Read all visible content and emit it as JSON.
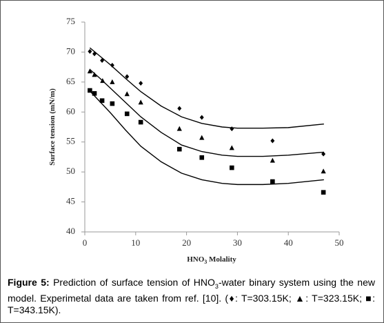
{
  "chart_data": {
    "type": "scatter",
    "xlabel": {
      "main": "HNO",
      "sub": "3",
      "rest": " Molality"
    },
    "ylabel": "Surface tension (mN/m)",
    "xlim": [
      0,
      50
    ],
    "xticks": [
      0,
      10,
      20,
      30,
      40,
      50
    ],
    "ylim": [
      40,
      75
    ],
    "yticks": [
      40,
      45,
      50,
      55,
      60,
      65,
      70,
      75
    ],
    "grid": false,
    "series": [
      {
        "marker": "diamond",
        "color": "#000000",
        "x": [
          1.0,
          1.9,
          3.4,
          5.4,
          8.3,
          11.0,
          18.6,
          23.0,
          28.9,
          36.9,
          46.9
        ],
        "values": [
          70.1,
          69.7,
          68.6,
          67.8,
          65.9,
          64.8,
          60.6,
          59.1,
          57.2,
          55.2,
          53.0
        ]
      },
      {
        "marker": "triangle",
        "color": "#000000",
        "x": [
          1.0,
          1.9,
          3.5,
          5.4,
          8.3,
          11.0,
          18.6,
          23.0,
          28.9,
          36.9,
          46.9
        ],
        "values": [
          66.8,
          66.2,
          65.2,
          65.0,
          63.0,
          61.6,
          57.2,
          55.7,
          54.0,
          51.9,
          50.1
        ]
      },
      {
        "marker": "square",
        "color": "#000000",
        "x": [
          1.0,
          1.9,
          3.4,
          5.4,
          8.3,
          11.0,
          18.6,
          23.0,
          28.9,
          36.9,
          46.9
        ],
        "values": [
          63.6,
          63.1,
          61.9,
          61.4,
          59.7,
          58.3,
          53.8,
          52.4,
          50.7,
          48.4,
          46.6
        ]
      }
    ],
    "model": {
      "color": "#000000",
      "x": [
        1,
        3,
        5,
        8,
        11,
        15,
        19,
        23,
        27,
        30,
        35,
        40,
        47
      ],
      "lines": [
        {
          "values": [
            70.7,
            69.3,
            67.9,
            65.6,
            63.4,
            61.0,
            59.2,
            58.1,
            57.5,
            57.3,
            57.3,
            57.4,
            58.0
          ]
        },
        {
          "values": [
            67.1,
            65.6,
            64.0,
            61.6,
            59.2,
            56.6,
            54.5,
            53.4,
            52.8,
            52.6,
            52.6,
            52.8,
            53.3
          ]
        },
        {
          "values": [
            63.5,
            61.7,
            59.9,
            57.0,
            54.3,
            51.7,
            49.8,
            48.7,
            48.1,
            47.9,
            47.9,
            48.1,
            48.7
          ]
        }
      ]
    }
  },
  "caption": {
    "label": "Figure 5:",
    "text_1": " Prediction of surface tension of HNO",
    "sub": "3",
    "text_2": "-water binary system using the new model. Experimetal data are taken from ref. [10]. (♦: T=303.15K; ▲: T=323.15K; ■: T=343.15K)."
  }
}
